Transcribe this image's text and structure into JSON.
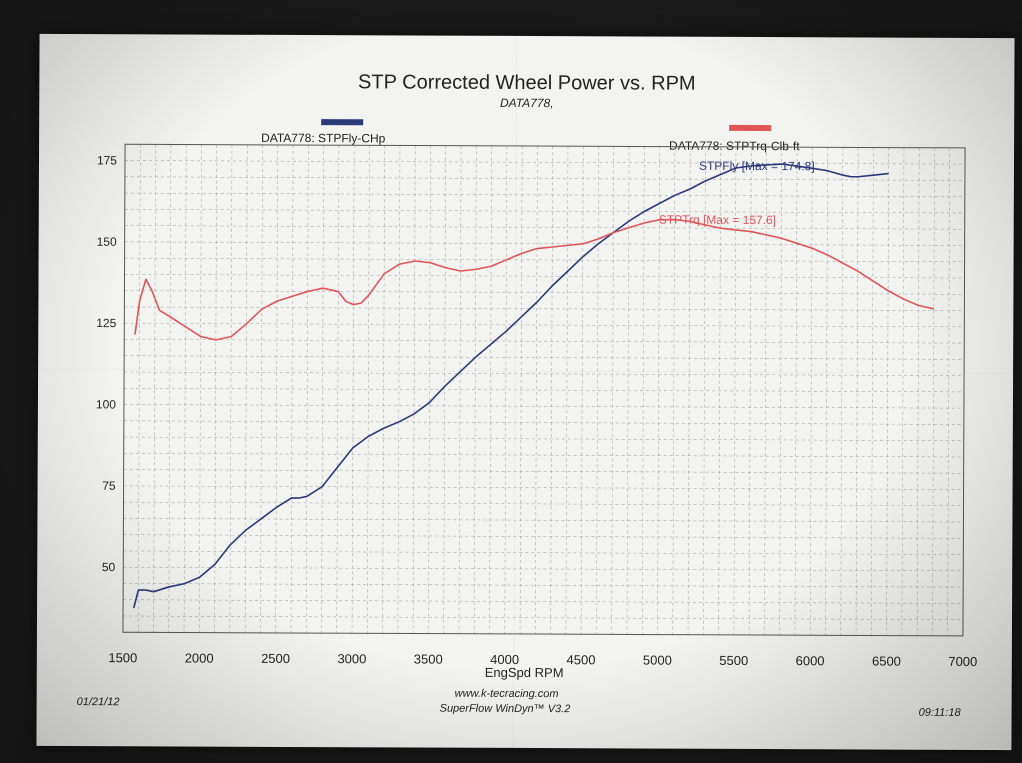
{
  "chart_data": {
    "type": "line",
    "title": "STP Corrected Wheel Power vs. RPM",
    "subtitle": "DATA778,",
    "xlabel": "EngSpd RPM",
    "ylabel": "",
    "xlim": [
      1500,
      7000
    ],
    "ylim": [
      30,
      180
    ],
    "x_ticks": [
      1500,
      2000,
      2500,
      3000,
      3500,
      4000,
      4500,
      5000,
      5500,
      6000,
      6500,
      7000
    ],
    "y_ticks": [
      50,
      75,
      100,
      125,
      150,
      175
    ],
    "grid": true,
    "series": [
      {
        "name": "DATA778: STPFly-CHp",
        "label": "STPFly [Max = 174.8]",
        "color": "#2d3a7a",
        "points": [
          [
            1570,
            37.5
          ],
          [
            1600,
            43
          ],
          [
            1650,
            43
          ],
          [
            1700,
            42.5
          ],
          [
            1800,
            44
          ],
          [
            1900,
            45
          ],
          [
            2000,
            47
          ],
          [
            2100,
            51
          ],
          [
            2200,
            57
          ],
          [
            2300,
            61.5
          ],
          [
            2400,
            65
          ],
          [
            2500,
            68.5
          ],
          [
            2600,
            71.5
          ],
          [
            2650,
            71.5
          ],
          [
            2700,
            72
          ],
          [
            2800,
            75
          ],
          [
            2900,
            81
          ],
          [
            3000,
            87
          ],
          [
            3100,
            90.5
          ],
          [
            3200,
            93
          ],
          [
            3300,
            95
          ],
          [
            3400,
            97.5
          ],
          [
            3500,
            101
          ],
          [
            3600,
            106
          ],
          [
            3700,
            110.5
          ],
          [
            3800,
            115
          ],
          [
            3900,
            119
          ],
          [
            4000,
            123
          ],
          [
            4100,
            127.5
          ],
          [
            4200,
            132
          ],
          [
            4300,
            137
          ],
          [
            4400,
            141.5
          ],
          [
            4500,
            146
          ],
          [
            4600,
            150
          ],
          [
            4700,
            153.5
          ],
          [
            4800,
            157
          ],
          [
            4900,
            160
          ],
          [
            5000,
            162.5
          ],
          [
            5100,
            165
          ],
          [
            5200,
            167
          ],
          [
            5300,
            169.5
          ],
          [
            5400,
            171.5
          ],
          [
            5500,
            173.5
          ],
          [
            5600,
            174.2
          ],
          [
            5700,
            174.5
          ],
          [
            5800,
            174.8
          ],
          [
            5900,
            174.2
          ],
          [
            6000,
            173.5
          ],
          [
            6100,
            172.8
          ],
          [
            6200,
            171.5
          ],
          [
            6250,
            171
          ],
          [
            6300,
            171
          ],
          [
            6400,
            171.5
          ],
          [
            6500,
            172
          ]
        ]
      },
      {
        "name": "DATA778: STPTrq-Clb-ft",
        "label": "STPTrq [Max = 157.6]",
        "color": "#e0555a",
        "points": [
          [
            1570,
            121.5
          ],
          [
            1600,
            132
          ],
          [
            1640,
            138.5
          ],
          [
            1680,
            135
          ],
          [
            1730,
            129
          ],
          [
            1800,
            127
          ],
          [
            1900,
            124
          ],
          [
            2000,
            121
          ],
          [
            2100,
            120
          ],
          [
            2200,
            121
          ],
          [
            2300,
            125
          ],
          [
            2400,
            129.5
          ],
          [
            2500,
            132
          ],
          [
            2600,
            133.5
          ],
          [
            2700,
            135
          ],
          [
            2800,
            136
          ],
          [
            2900,
            135
          ],
          [
            2950,
            132
          ],
          [
            3000,
            131
          ],
          [
            3050,
            131.5
          ],
          [
            3100,
            134
          ],
          [
            3200,
            140.5
          ],
          [
            3300,
            143.5
          ],
          [
            3400,
            144.5
          ],
          [
            3500,
            144
          ],
          [
            3600,
            142.5
          ],
          [
            3700,
            141.5
          ],
          [
            3800,
            142
          ],
          [
            3900,
            143
          ],
          [
            4000,
            145
          ],
          [
            4100,
            147
          ],
          [
            4200,
            148.5
          ],
          [
            4300,
            149
          ],
          [
            4400,
            149.5
          ],
          [
            4500,
            150
          ],
          [
            4600,
            151.5
          ],
          [
            4700,
            153.5
          ],
          [
            4800,
            155
          ],
          [
            4900,
            156.5
          ],
          [
            5000,
            157.5
          ],
          [
            5100,
            157.6
          ],
          [
            5200,
            157
          ],
          [
            5300,
            156
          ],
          [
            5400,
            155
          ],
          [
            5500,
            154.5
          ],
          [
            5600,
            154
          ],
          [
            5700,
            153
          ],
          [
            5800,
            152
          ],
          [
            5900,
            150.5
          ],
          [
            6000,
            149
          ],
          [
            6100,
            147
          ],
          [
            6200,
            144.5
          ],
          [
            6300,
            142
          ],
          [
            6400,
            139
          ],
          [
            6500,
            136
          ],
          [
            6600,
            133.5
          ],
          [
            6700,
            131.5
          ],
          [
            6800,
            130.5
          ]
        ]
      }
    ]
  },
  "legend": {
    "hp_text": "DATA778: STPFly-CHp",
    "trq_text": "DATA778: STPTrq-Clb-ft",
    "hp_color": "#2d3a7a",
    "trq_color": "#e0555a"
  },
  "footer": {
    "date": "01/21/12",
    "website": "www.k-tecracing.com",
    "software": "SuperFlow WinDyn™ V3.2",
    "time": "09:11:18"
  }
}
